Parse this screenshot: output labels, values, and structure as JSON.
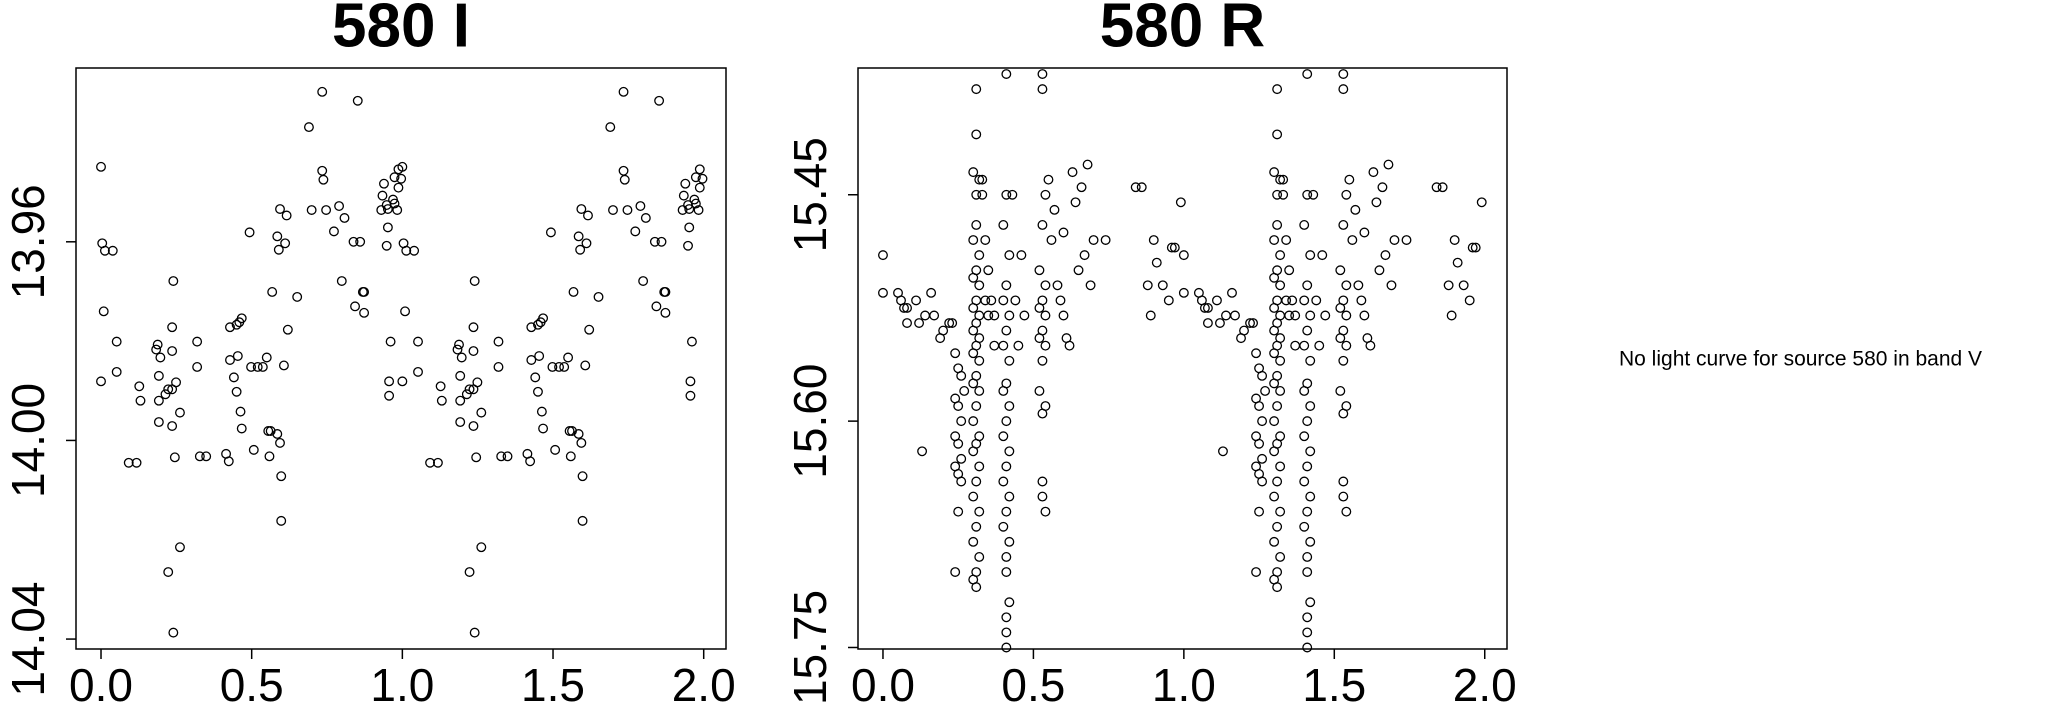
{
  "chart_data": [
    {
      "type": "scatter",
      "title": "580 I",
      "xlim": [
        -0.083,
        2.074
      ],
      "ylim": [
        14.042,
        13.925
      ],
      "xticks": [
        {
          "value": 0,
          "label": "0.0"
        },
        0.5,
        {
          "value": 1,
          "label": "1.0"
        },
        1.5,
        {
          "value": 2,
          "label": "2.0"
        }
      ],
      "yticks": [
        13.96,
        {
          "value": 14,
          "label": "14.00"
        },
        14.04
      ],
      "color": "#000000",
      "x": [
        0,
        0.004,
        0.013,
        0.039,
        0.009,
        0.052,
        0,
        0.052,
        0.092,
        0.118,
        0.127,
        0.131,
        0.188,
        0.183,
        0.197,
        0.192,
        0.192,
        0.192,
        0.214,
        0.223,
        0.236,
        0.236,
        0.236,
        0.24,
        0.249,
        0.236,
        0.245,
        0.262,
        0.223,
        0.262,
        0.24,
        0.319,
        0.319,
        0.328,
        0.349,
        0.415,
        0.424,
        0.428,
        0.428,
        0.441,
        0.45,
        0.45,
        0.459,
        0.454,
        0.467,
        0.463,
        0.467,
        0.493,
        0.498,
        0.507,
        0.52,
        0.537,
        0.55,
        0.555,
        0.559,
        0.563,
        0.568,
        0.585,
        0.585,
        0.594,
        0.59,
        0.594,
        0.598,
        0.598,
        0.611,
        0.616,
        0.607,
        0.62,
        0.651,
        0.69,
        0.699,
        0.734,
        0.738,
        0.747,
        0.773,
        0.79,
        0.799,
        0.808,
        0.838,
        0.843,
        0.869,
        0.873,
        0.86,
        0.873,
        0.93,
        0.934,
        0.939,
        0.948,
        0.952,
        0.948,
        0.952,
        0.956,
        0.956,
        0.961,
        0.969,
        0.974,
        0.974,
        0.983,
        0.987,
        0.987,
        0.996,
        0.734,
        0.852,
        1,
        1.004,
        1.013,
        1.039,
        1.009,
        1.052,
        1,
        1.052,
        1.092,
        1.118,
        1.127,
        1.131,
        1.188,
        1.183,
        1.197,
        1.192,
        1.192,
        1.192,
        1.214,
        1.223,
        1.236,
        1.236,
        1.236,
        1.24,
        1.249,
        1.236,
        1.245,
        1.262,
        1.223,
        1.262,
        1.24,
        1.319,
        1.319,
        1.328,
        1.349,
        1.415,
        1.424,
        1.428,
        1.428,
        1.441,
        1.45,
        1.45,
        1.459,
        1.454,
        1.467,
        1.463,
        1.467,
        1.493,
        1.498,
        1.507,
        1.52,
        1.537,
        1.55,
        1.555,
        1.559,
        1.563,
        1.568,
        1.585,
        1.585,
        1.594,
        1.59,
        1.594,
        1.598,
        1.598,
        1.611,
        1.616,
        1.607,
        1.62,
        1.651,
        1.69,
        1.699,
        1.734,
        1.738,
        1.747,
        1.773,
        1.79,
        1.799,
        1.808,
        1.838,
        1.843,
        1.869,
        1.873,
        1.86,
        1.873,
        1.93,
        1.934,
        1.939,
        1.948,
        1.952,
        1.948,
        1.952,
        1.956,
        1.956,
        1.961,
        1.969,
        1.974,
        1.974,
        1.983,
        1.987,
        1.987,
        1.996,
        1.734,
        1.852
      ],
      "values": [
        13.9449,
        13.9603,
        13.9618,
        13.9618,
        13.974,
        13.9801,
        13.9881,
        13.9862,
        14.0045,
        14.0045,
        13.9891,
        13.992,
        13.9807,
        13.9817,
        13.9833,
        13.987,
        13.992,
        13.9963,
        13.9907,
        13.9897,
        13.9897,
        13.982,
        13.9772,
        13.9679,
        13.9883,
        13.9971,
        14.0034,
        13.9944,
        14.0265,
        14.0215,
        14.0387,
        13.9801,
        13.9852,
        14.0032,
        14.0032,
        14.0027,
        14.0042,
        13.9838,
        13.9772,
        13.9873,
        13.9902,
        13.9767,
        13.9762,
        13.983,
        13.9754,
        13.9942,
        13.9976,
        13.9581,
        13.9852,
        14.0019,
        13.9852,
        13.9852,
        13.9833,
        13.9981,
        14.0032,
        13.9981,
        13.9701,
        13.9987,
        13.9589,
        13.9534,
        13.9616,
        14.0005,
        14.0072,
        14.0162,
        13.9603,
        13.9547,
        13.9849,
        13.9777,
        13.9711,
        13.9369,
        13.9536,
        13.9457,
        13.9475,
        13.9536,
        13.9579,
        13.9528,
        13.9679,
        13.9552,
        13.96,
        13.973,
        13.9701,
        13.9701,
        13.96,
        13.9743,
        13.9536,
        13.9507,
        13.9483,
        13.9526,
        13.9571,
        13.9608,
        13.9534,
        13.991,
        13.9881,
        13.9801,
        13.9515,
        13.947,
        13.9523,
        13.9536,
        13.9491,
        13.9454,
        13.9473,
        13.9298,
        13.9316,
        13.9449,
        13.9603,
        13.9618,
        13.9618,
        13.974,
        13.9801,
        13.9881,
        13.9862,
        14.0045,
        14.0045,
        13.9891,
        13.992,
        13.9807,
        13.9817,
        13.9833,
        13.987,
        13.992,
        13.9963,
        13.9907,
        13.9897,
        13.9897,
        13.982,
        13.9772,
        13.9679,
        13.9883,
        13.9971,
        14.0034,
        13.9944,
        14.0265,
        14.0215,
        14.0387,
        13.9801,
        13.9852,
        14.0032,
        14.0032,
        14.0027,
        14.0042,
        13.9838,
        13.9772,
        13.9873,
        13.9902,
        13.9767,
        13.9762,
        13.983,
        13.9754,
        13.9942,
        13.9976,
        13.9581,
        13.9852,
        14.0019,
        13.9852,
        13.9852,
        13.9833,
        13.9981,
        14.0032,
        13.9981,
        13.9701,
        13.9987,
        13.9589,
        13.9534,
        13.9616,
        14.0005,
        14.0072,
        14.0162,
        13.9603,
        13.9547,
        13.9849,
        13.9777,
        13.9711,
        13.9369,
        13.9536,
        13.9457,
        13.9475,
        13.9536,
        13.9579,
        13.9528,
        13.9679,
        13.9552,
        13.96,
        13.973,
        13.9701,
        13.9701,
        13.96,
        13.9743,
        13.9536,
        13.9507,
        13.9483,
        13.9526,
        13.9571,
        13.9608,
        13.9534,
        13.991,
        13.9881,
        13.9801,
        13.9515,
        13.947,
        13.9523,
        13.9536,
        13.9491,
        13.9454,
        13.9473,
        13.9298,
        13.9316
      ]
    },
    {
      "type": "scatter",
      "title": "580 R",
      "xlim": [
        -0.083,
        2.074
      ],
      "ylim": [
        15.751,
        15.366
      ],
      "xticks": [
        {
          "value": 0,
          "label": "0.0"
        },
        0.5,
        {
          "value": 1,
          "label": "1.0"
        },
        1.5,
        {
          "value": 2,
          "label": "2.0"
        }
      ],
      "yticks": [
        15.45,
        {
          "value": 15.6,
          "label": "15.60"
        },
        15.75
      ],
      "color": "#000000",
      "x": [
        0,
        0,
        0.05,
        0.06,
        0.07,
        0.08,
        0.08,
        0.11,
        0.12,
        0.13,
        0.14,
        0.16,
        0.17,
        0.19,
        0.2,
        0.22,
        0.23,
        0.24,
        0.25,
        0.26,
        0.27,
        0.24,
        0.25,
        0.26,
        0.24,
        0.25,
        0.26,
        0.24,
        0.25,
        0.26,
        0.25,
        0.24,
        0.31,
        0.31,
        0.3,
        0.32,
        0.31,
        0.31,
        0.3,
        0.32,
        0.31,
        0.3,
        0.32,
        0.31,
        0.3,
        0.32,
        0.31,
        0.3,
        0.32,
        0.31,
        0.3,
        0.32,
        0.31,
        0.3,
        0.32,
        0.31,
        0.3,
        0.32,
        0.31,
        0.3,
        0.32,
        0.31,
        0.3,
        0.32,
        0.31,
        0.3,
        0.32,
        0.31,
        0.3,
        0.31,
        0.33,
        0.33,
        0.34,
        0.34,
        0.35,
        0.36,
        0.37,
        0.37,
        0.35,
        0.41,
        0.41,
        0.4,
        0.42,
        0.41,
        0.4,
        0.42,
        0.41,
        0.4,
        0.42,
        0.41,
        0.4,
        0.42,
        0.41,
        0.4,
        0.42,
        0.41,
        0.4,
        0.42,
        0.41,
        0.4,
        0.42,
        0.41,
        0.41,
        0.42,
        0.41,
        0.41,
        0.41,
        0.43,
        0.44,
        0.45,
        0.46,
        0.47,
        0.53,
        0.53,
        0.54,
        0.53,
        0.52,
        0.54,
        0.53,
        0.52,
        0.54,
        0.53,
        0.52,
        0.54,
        0.53,
        0.52,
        0.54,
        0.53,
        0.53,
        0.53,
        0.54,
        0.55,
        0.56,
        0.57,
        0.58,
        0.59,
        0.6,
        0.6,
        0.61,
        0.62,
        0.63,
        0.64,
        0.65,
        0.66,
        0.67,
        0.68,
        0.69,
        0.7,
        0.74,
        0.84,
        0.86,
        0.88,
        0.89,
        0.9,
        0.91,
        0.93,
        0.95,
        0.96,
        0.97,
        0.99,
        1,
        1,
        1.05,
        1.06,
        1.07,
        1.08,
        1.08,
        1.11,
        1.12,
        1.13,
        1.14,
        1.16,
        1.17,
        1.19,
        1.2,
        1.22,
        1.23,
        1.24,
        1.25,
        1.26,
        1.27,
        1.24,
        1.25,
        1.26,
        1.24,
        1.25,
        1.26,
        1.24,
        1.25,
        1.26,
        1.25,
        1.24,
        1.31,
        1.31,
        1.3,
        1.32,
        1.31,
        1.31,
        1.3,
        1.32,
        1.31,
        1.3,
        1.32,
        1.31,
        1.3,
        1.32,
        1.31,
        1.3,
        1.32,
        1.31,
        1.3,
        1.32,
        1.31,
        1.3,
        1.32,
        1.31,
        1.3,
        1.32,
        1.31,
        1.3,
        1.32,
        1.31,
        1.3,
        1.32,
        1.31,
        1.3,
        1.32,
        1.31,
        1.3,
        1.31,
        1.33,
        1.33,
        1.34,
        1.34,
        1.35,
        1.36,
        1.37,
        1.37,
        1.35,
        1.41,
        1.41,
        1.4,
        1.42,
        1.41,
        1.4,
        1.42,
        1.41,
        1.4,
        1.42,
        1.41,
        1.4,
        1.42,
        1.41,
        1.4,
        1.42,
        1.41,
        1.4,
        1.42,
        1.41,
        1.4,
        1.42,
        1.41,
        1.41,
        1.42,
        1.41,
        1.41,
        1.41,
        1.43,
        1.44,
        1.45,
        1.46,
        1.47,
        1.53,
        1.53,
        1.54,
        1.53,
        1.52,
        1.54,
        1.53,
        1.52,
        1.54,
        1.53,
        1.52,
        1.54,
        1.53,
        1.52,
        1.54,
        1.53,
        1.53,
        1.53,
        1.54,
        1.55,
        1.56,
        1.57,
        1.58,
        1.59,
        1.6,
        1.6,
        1.61,
        1.62,
        1.63,
        1.64,
        1.65,
        1.66,
        1.67,
        1.68,
        1.69,
        1.7,
        1.74,
        1.84,
        1.86,
        1.88,
        1.89,
        1.9,
        1.91,
        1.93,
        1.95,
        1.96,
        1.97,
        1.99
      ],
      "values": [
        15.49,
        15.515,
        15.515,
        15.52,
        15.525,
        15.525,
        15.535,
        15.52,
        15.535,
        15.62,
        15.53,
        15.515,
        15.53,
        15.545,
        15.54,
        15.535,
        15.535,
        15.555,
        15.565,
        15.57,
        15.58,
        15.585,
        15.59,
        15.6,
        15.61,
        15.615,
        15.625,
        15.63,
        15.635,
        15.64,
        15.66,
        15.7,
        15.38,
        15.41,
        15.435,
        15.44,
        15.45,
        15.47,
        15.48,
        15.49,
        15.5,
        15.505,
        15.51,
        15.52,
        15.525,
        15.53,
        15.535,
        15.54,
        15.545,
        15.55,
        15.555,
        15.56,
        15.57,
        15.575,
        15.58,
        15.59,
        15.6,
        15.61,
        15.615,
        15.62,
        15.63,
        15.64,
        15.65,
        15.66,
        15.67,
        15.68,
        15.69,
        15.7,
        15.705,
        15.71,
        15.44,
        15.45,
        15.48,
        15.52,
        15.5,
        15.52,
        15.53,
        15.55,
        15.53,
        15.37,
        15.45,
        15.47,
        15.49,
        15.51,
        15.52,
        15.53,
        15.54,
        15.55,
        15.56,
        15.575,
        15.58,
        15.59,
        15.6,
        15.61,
        15.62,
        15.63,
        15.64,
        15.65,
        15.66,
        15.67,
        15.68,
        15.69,
        15.7,
        15.72,
        15.73,
        15.74,
        15.75,
        15.45,
        15.52,
        15.55,
        15.49,
        15.53,
        15.37,
        15.38,
        15.45,
        15.47,
        15.5,
        15.51,
        15.52,
        15.525,
        15.53,
        15.54,
        15.545,
        15.55,
        15.56,
        15.58,
        15.59,
        15.595,
        15.64,
        15.65,
        15.66,
        15.44,
        15.48,
        15.46,
        15.51,
        15.52,
        15.475,
        15.53,
        15.545,
        15.55,
        15.435,
        15.455,
        15.5,
        15.445,
        15.49,
        15.43,
        15.51,
        15.48,
        15.48,
        15.445,
        15.445,
        15.51,
        15.53,
        15.48,
        15.495,
        15.51,
        15.52,
        15.485,
        15.485,
        15.455,
        15.49,
        15.515,
        15.515,
        15.52,
        15.525,
        15.525,
        15.535,
        15.52,
        15.535,
        15.62,
        15.53,
        15.515,
        15.53,
        15.545,
        15.54,
        15.535,
        15.535,
        15.555,
        15.565,
        15.57,
        15.58,
        15.585,
        15.59,
        15.6,
        15.61,
        15.615,
        15.625,
        15.63,
        15.635,
        15.64,
        15.66,
        15.7,
        15.38,
        15.41,
        15.435,
        15.44,
        15.45,
        15.47,
        15.48,
        15.49,
        15.5,
        15.505,
        15.51,
        15.52,
        15.525,
        15.53,
        15.535,
        15.54,
        15.545,
        15.55,
        15.555,
        15.56,
        15.57,
        15.575,
        15.58,
        15.59,
        15.6,
        15.61,
        15.615,
        15.62,
        15.63,
        15.64,
        15.65,
        15.66,
        15.67,
        15.68,
        15.69,
        15.7,
        15.705,
        15.71,
        15.44,
        15.45,
        15.48,
        15.52,
        15.5,
        15.52,
        15.53,
        15.55,
        15.53,
        15.37,
        15.45,
        15.47,
        15.49,
        15.51,
        15.52,
        15.53,
        15.54,
        15.55,
        15.56,
        15.575,
        15.58,
        15.59,
        15.6,
        15.61,
        15.62,
        15.63,
        15.64,
        15.65,
        15.66,
        15.67,
        15.68,
        15.69,
        15.7,
        15.72,
        15.73,
        15.74,
        15.75,
        15.45,
        15.52,
        15.55,
        15.49,
        15.53,
        15.37,
        15.38,
        15.45,
        15.47,
        15.5,
        15.51,
        15.52,
        15.525,
        15.53,
        15.54,
        15.545,
        15.55,
        15.56,
        15.58,
        15.59,
        15.595,
        15.64,
        15.65,
        15.66,
        15.44,
        15.48,
        15.46,
        15.51,
        15.52,
        15.475,
        15.53,
        15.545,
        15.55,
        15.435,
        15.455,
        15.5,
        15.445,
        15.49,
        15.43,
        15.51,
        15.48,
        15.48,
        15.445,
        15.445,
        15.51,
        15.53,
        15.48,
        15.495,
        15.51,
        15.52,
        15.485,
        15.485,
        15.455
      ]
    }
  ],
  "message": "No light curve for source 580 in band V"
}
